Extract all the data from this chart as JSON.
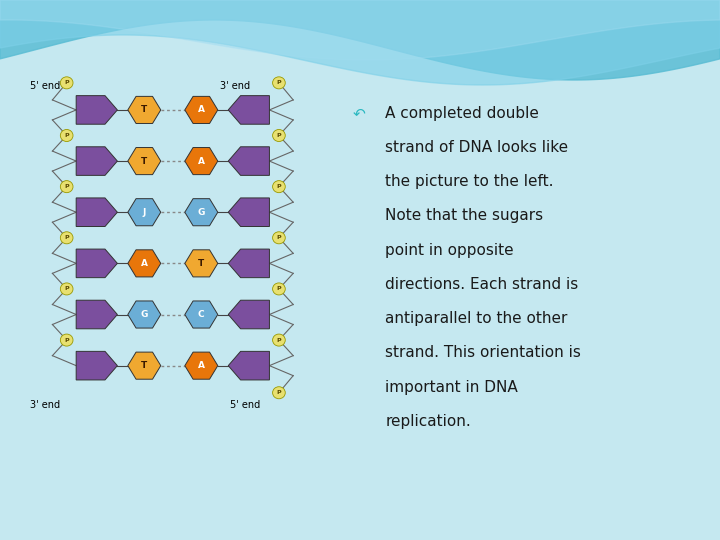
{
  "slide_bg": "#c5e8f0",
  "panel_bg": "#ffffff",
  "text_color": "#1a1a1a",
  "bullet_color": "#2ab8c0",
  "text_line1": "↶ A completed double",
  "text_line2": "   strand of DNA looks like",
  "text_line3": "   the picture to the left.",
  "text_line4": "   Note that the sugars",
  "text_line5": "   point in opposite",
  "text_line6": "   directions. Each strand is",
  "text_line7": "   antiparallel to the other",
  "text_line8": "   strand. This orientation is",
  "text_line9": "   important in DNA",
  "text_line10": "   replication.",
  "label_5end_left": "5' end",
  "label_3end_right": "3' end",
  "label_3end_left": "3' end",
  "label_5end_right": "5' end",
  "purple_color": "#7B4F9E",
  "orange_dark": "#E8760A",
  "orange_light": "#F0A830",
  "blue_color": "#6BAED6",
  "p_circle_color": "#E8E070",
  "p_text_color": "#5a4a00",
  "pairs": [
    {
      "lb": "T",
      "lc": "#F0A830",
      "rb": "A",
      "rc": "#E8760A"
    },
    {
      "lb": "T",
      "lc": "#F0A830",
      "rb": "A",
      "rc": "#E8760A"
    },
    {
      "lb": "J",
      "lc": "#6BAED6",
      "rb": "G",
      "rc": "#6BAED6"
    },
    {
      "lb": "A",
      "lc": "#E8760A",
      "rb": "T",
      "rc": "#F0A830"
    },
    {
      "lb": "G",
      "lc": "#6BAED6",
      "rb": "C",
      "rc": "#6BAED6"
    },
    {
      "lb": "T",
      "lc": "#F0A830",
      "rb": "A",
      "rc": "#E8760A"
    }
  ],
  "wave1_color": "#5bbdd4",
  "wave2_color": "#7dd0e8",
  "wave3_color": "#a0dcf0"
}
